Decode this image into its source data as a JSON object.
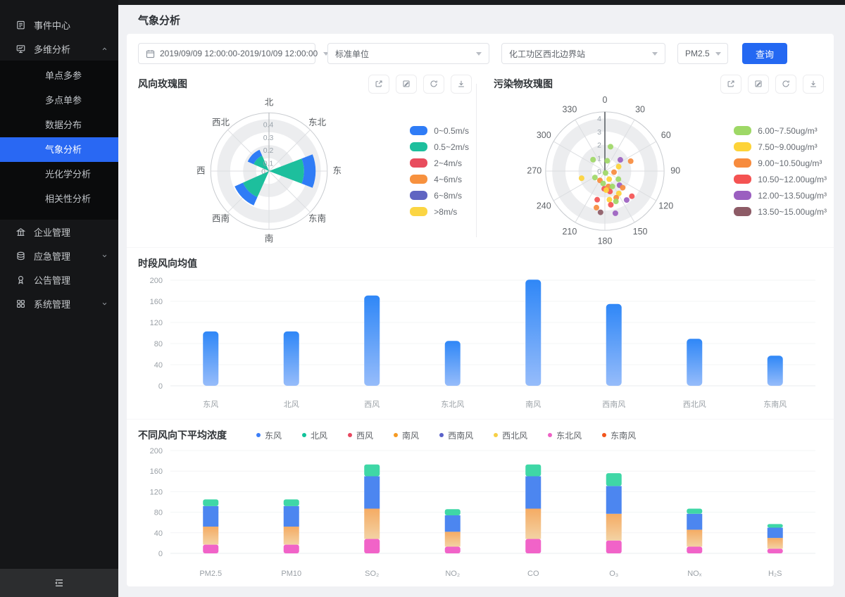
{
  "page_title": "气象分析",
  "colors": {
    "accent": "#2468F2",
    "sidebar_bg": "#151618",
    "sidebar_active": "#2968F3",
    "bar_blue_top": "#2F87F7",
    "bar_blue_bottom": "#96BCFA"
  },
  "sidebar": {
    "items": [
      {
        "key": "event-center",
        "label": "事件中心",
        "icon": "event"
      },
      {
        "key": "multi-analysis",
        "label": "多维分析",
        "icon": "analysis",
        "chevron": "chevron-up",
        "children": [
          {
            "key": "single-point-multi-param",
            "label": "单点多参"
          },
          {
            "key": "multi-point-single-param",
            "label": "多点单参"
          },
          {
            "key": "data-distribution",
            "label": "数据分布"
          },
          {
            "key": "weather-analysis",
            "label": "气象分析",
            "active": true
          },
          {
            "key": "photochemical-analysis",
            "label": "光化学分析"
          },
          {
            "key": "correlation-analysis",
            "label": "相关性分析"
          }
        ]
      },
      {
        "key": "enterprise-management",
        "label": "企业管理",
        "icon": "enterprise"
      },
      {
        "key": "emergency-management",
        "label": "应急管理",
        "icon": "emergency",
        "chevron": "chevron-down"
      },
      {
        "key": "notice-management",
        "label": "公告管理",
        "icon": "notice"
      },
      {
        "key": "system-management",
        "label": "系统管理",
        "icon": "system",
        "chevron": "chevron-down"
      }
    ]
  },
  "filters": {
    "date_range": "2019/09/09 12:00:00-2019/10/09 12:00:00",
    "unit_select": "标准单位",
    "station_select": "化工功区西北边界站",
    "pollutant_select": "PM2.5",
    "query_label": "查询"
  },
  "chart_data": [
    {
      "id": "wind_rose",
      "type": "rose",
      "title": "风向玫瑰图",
      "toolbar_icons": [
        "external-link",
        "edit",
        "refresh",
        "download"
      ],
      "directions": [
        "北",
        "东北",
        "东",
        "东南",
        "南",
        "西南",
        "西",
        "西北"
      ],
      "radial_ticks": [
        0.1,
        0.2,
        0.3,
        0.4
      ],
      "rmax": 0.45,
      "series": [
        {
          "name": "0~0.5m/s",
          "color": "#2F7CF6"
        },
        {
          "name": "0.5~2m/s",
          "color": "#1DBF9D"
        },
        {
          "name": "2~4m/s",
          "color": "#E84C5D"
        },
        {
          "name": "4~6m/s",
          "color": "#F7913E"
        },
        {
          "name": "6~8m/s",
          "color": "#6065C2"
        },
        {
          "name": ">8m/s",
          "color": "#FBD543"
        }
      ],
      "wedges": [
        {
          "direction": "东",
          "angle": 90,
          "segments": [
            [
              "0.5~2m/s",
              0,
              0.27
            ],
            [
              "0~0.5m/s",
              0.27,
              0.36
            ]
          ]
        },
        {
          "direction": "西南",
          "angle": 225,
          "segments": [
            [
              "0.5~2m/s",
              0,
              0.22
            ],
            [
              "0~0.5m/s",
              0.22,
              0.29
            ]
          ]
        },
        {
          "direction": "西北",
          "angle": 315,
          "segments": [
            [
              "0.5~2m/s",
              0,
              0.13
            ],
            [
              "0~0.5m/s",
              0.13,
              0.18
            ]
          ]
        }
      ]
    },
    {
      "id": "pollutant_rose",
      "type": "polar-scatter",
      "title": "污染物玫瑰图",
      "toolbar_icons": [
        "external-link",
        "edit",
        "refresh",
        "download"
      ],
      "angle_ticks": [
        0,
        30,
        60,
        90,
        120,
        150,
        180,
        210,
        240,
        270,
        300,
        330
      ],
      "radial_ticks": [
        1,
        2,
        3,
        4
      ],
      "rmax": 4.5,
      "bands": [
        {
          "name": "6.00~7.50ug/m³",
          "color": "#9ED866"
        },
        {
          "name": "7.50~9.00ug/m³",
          "color": "#FDD338"
        },
        {
          "name": "9.00~10.50ug/m³",
          "color": "#F78B3D"
        },
        {
          "name": "10.50~12.00ug/m³",
          "color": "#F45352"
        },
        {
          "name": "12.00~13.50ug/m³",
          "color": "#9B5FC0"
        },
        {
          "name": "13.50~15.00ug/m³",
          "color": "#8D5B66"
        }
      ],
      "points": [
        [
          13,
          1.9,
          0
        ],
        [
          314,
          1.25,
          0
        ],
        [
          54,
          1.45,
          4
        ],
        [
          69,
          2.1,
          2
        ],
        [
          13,
          0.8,
          0
        ],
        [
          72,
          1.1,
          1
        ],
        [
          160,
          0.15,
          0
        ],
        [
          97,
          0.7,
          2
        ],
        [
          253,
          1.85,
          1
        ],
        [
          237,
          0.9,
          0
        ],
        [
          208,
          0.8,
          2
        ],
        [
          152,
          0.7,
          1
        ],
        [
          188,
          0.95,
          0
        ],
        [
          182,
          1.35,
          3
        ],
        [
          167,
          1.2,
          2
        ],
        [
          154,
          1.3,
          0
        ],
        [
          134,
          1.55,
          4
        ],
        [
          133,
          1.85,
          2
        ],
        [
          166,
          1.6,
          3
        ],
        [
          176,
          1.45,
          1
        ],
        [
          148,
          2.0,
          1
        ],
        [
          133,
          2.8,
          3
        ],
        [
          171,
          2.2,
          1
        ],
        [
          157,
          2.2,
          2
        ],
        [
          143,
          2.75,
          4
        ],
        [
          195,
          2.25,
          3
        ],
        [
          170,
          2.6,
          3
        ],
        [
          193,
          2.85,
          2
        ],
        [
          186,
          3.15,
          5
        ],
        [
          166,
          3.3,
          4
        ],
        [
          160,
          2.45,
          0
        ],
        [
          121,
          1.2,
          0
        ]
      ]
    },
    {
      "id": "wind_avg_bar",
      "type": "bar",
      "title": "时段风向均值",
      "categories": [
        "东风",
        "北风",
        "西风",
        "东北风",
        "南风",
        "西南风",
        "西北风",
        "东南风"
      ],
      "values": [
        103,
        103,
        171,
        85,
        201,
        155,
        89,
        57
      ],
      "ylim": [
        0,
        200
      ],
      "yticks": [
        0,
        40,
        80,
        120,
        160,
        200
      ],
      "bar_gradient": [
        "#2F87F7",
        "#96BCFA"
      ]
    },
    {
      "id": "concentration_stacked",
      "type": "bar-stacked",
      "title": "不同风向下平均浓度",
      "categories": [
        "PM2.5",
        "PM10",
        "SO₂",
        "NO₂",
        "CO",
        "O₃",
        "NOₓ",
        "H₂S"
      ],
      "legend": [
        {
          "name": "东风",
          "color": "#3B7EF8"
        },
        {
          "name": "北风",
          "color": "#10C39A"
        },
        {
          "name": "西风",
          "color": "#E8475F"
        },
        {
          "name": "南风",
          "color": "#F59A23"
        },
        {
          "name": "西南风",
          "color": "#5A61C9"
        },
        {
          "name": "西北风",
          "color": "#F6CF45"
        },
        {
          "name": "东北风",
          "color": "#EE61C5"
        },
        {
          "name": "东南风",
          "color": "#F2541B"
        }
      ],
      "stack_series": [
        {
          "name": "东北风",
          "color": "#F163C8",
          "values": [
            17,
            17,
            28,
            13,
            28,
            25,
            13,
            9
          ]
        },
        {
          "name": "南风",
          "color": "#F5AB63",
          "color2": "#F3D2A4",
          "values": [
            35,
            35,
            59,
            29,
            59,
            52,
            33,
            21
          ]
        },
        {
          "name": "东风",
          "color": "#4C86F0",
          "values": [
            40,
            40,
            63,
            32,
            63,
            54,
            31,
            20
          ]
        },
        {
          "name": "北风",
          "color": "#3FD7A6",
          "values": [
            13,
            13,
            23,
            12,
            23,
            25,
            10,
            7
          ]
        }
      ],
      "ylim": [
        0,
        200
      ],
      "yticks": [
        0,
        40,
        80,
        120,
        160,
        200
      ]
    }
  ]
}
